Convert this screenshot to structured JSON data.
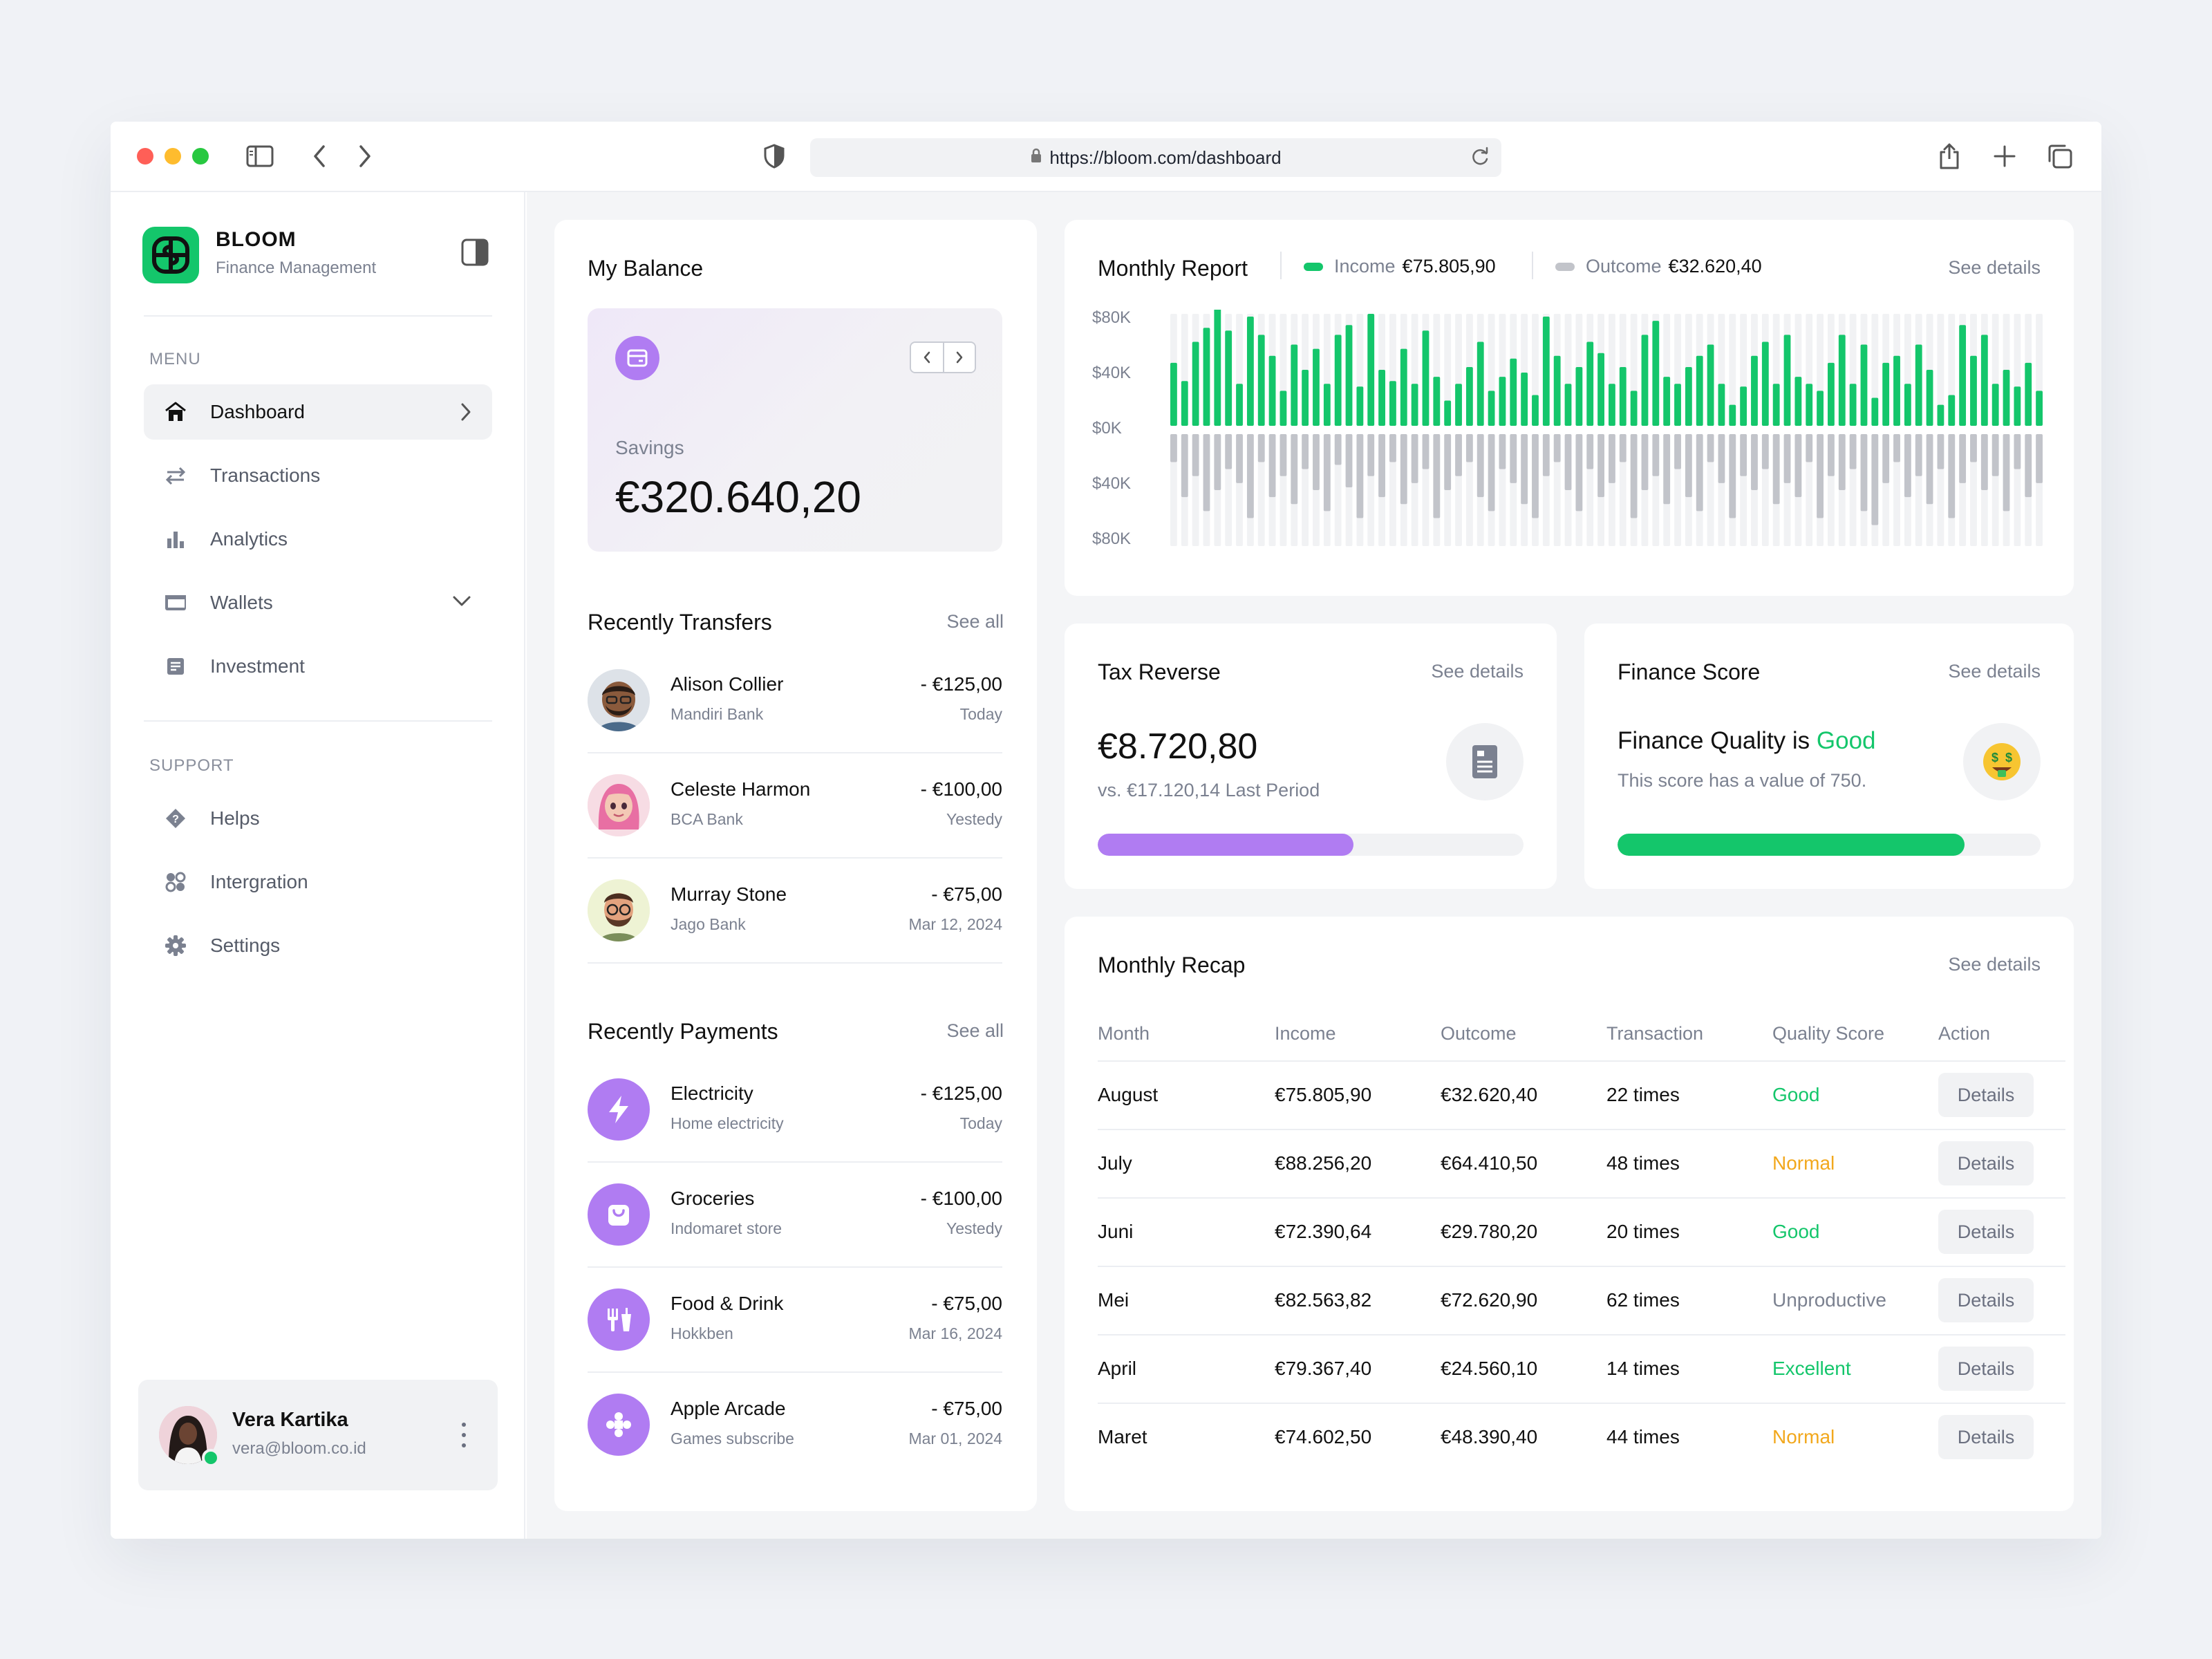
{
  "browser": {
    "url": "https://bloom.com/dashboard"
  },
  "brand": {
    "name": "BLOOM",
    "subtitle": "Finance Management"
  },
  "sidebar": {
    "menu_label": "MENU",
    "menu": [
      {
        "label": "Dashboard",
        "icon": "home-icon"
      },
      {
        "label": "Transactions",
        "icon": "arrows-exchange-icon"
      },
      {
        "label": "Analytics",
        "icon": "bar-chart-icon"
      },
      {
        "label": "Wallets",
        "icon": "wallet-icon"
      },
      {
        "label": "Investment",
        "icon": "document-icon"
      }
    ],
    "support_label": "SUPPORT",
    "support": [
      {
        "label": "Helps",
        "icon": "help-diamond-icon"
      },
      {
        "label": "Intergration",
        "icon": "integration-icon"
      },
      {
        "label": "Settings",
        "icon": "gear-icon"
      }
    ]
  },
  "profile": {
    "name": "Vera Kartika",
    "email": "vera@bloom.co.id"
  },
  "balance": {
    "title": "My Balance",
    "savings_label": "Savings",
    "savings_value": "€320.640,20"
  },
  "transfers": {
    "title": "Recently Transfers",
    "see_all": "See all",
    "items": [
      {
        "name": "Alison Collier",
        "sub": "Mandiri Bank",
        "amount": "- €125,00",
        "date": "Today"
      },
      {
        "name": "Celeste Harmon",
        "sub": "BCA Bank",
        "amount": "- €100,00",
        "date": "Yestedy"
      },
      {
        "name": "Murray Stone",
        "sub": "Jago Bank",
        "amount": "- €75,00",
        "date": "Mar 12, 2024"
      }
    ]
  },
  "payments": {
    "title": "Recently Payments",
    "see_all": "See all",
    "items": [
      {
        "name": "Electricity",
        "sub": "Home electricity",
        "amount": "- €125,00",
        "date": "Today",
        "icon": "lightning-icon"
      },
      {
        "name": "Groceries",
        "sub": "Indomaret store",
        "amount": "- €100,00",
        "date": "Yestedy",
        "icon": "shopping-bag-icon"
      },
      {
        "name": "Food & Drink",
        "sub": "Hokkben",
        "amount": "- €75,00",
        "date": "Mar 16, 2024",
        "icon": "fork-cup-icon"
      },
      {
        "name": "Apple Arcade",
        "sub": "Games subscribe",
        "amount": "- €75,00",
        "date": "Mar 01, 2024",
        "icon": "gamepad-icon"
      }
    ]
  },
  "report": {
    "title": "Monthly Report",
    "income_label": "Income",
    "income_value": "€75.805,90",
    "outcome_label": "Outcome",
    "outcome_value": "€32.620,40",
    "see_details": "See details"
  },
  "chart_data": {
    "type": "bar",
    "y_tick_labels": [
      "$80K",
      "$40K",
      "$0K",
      "$40K",
      "$80K"
    ],
    "ylim": [
      -80,
      80
    ],
    "grid": false,
    "colors": {
      "income": "#14c66b",
      "outcome": "#c2c4ca",
      "track": "#f1f2f4"
    },
    "series": [
      {
        "name": "Income",
        "values": [
          45,
          32,
          60,
          70,
          85,
          68,
          30,
          78,
          65,
          50,
          25,
          58,
          40,
          55,
          30,
          65,
          72,
          28,
          80,
          40,
          32,
          55,
          30,
          68,
          35,
          18,
          30,
          42,
          60,
          25,
          35,
          48,
          38,
          22,
          78,
          50,
          30,
          42,
          60,
          52,
          30,
          42,
          25,
          65,
          75,
          35,
          30,
          42,
          50,
          58,
          30,
          15,
          28,
          50,
          60,
          30,
          65,
          35,
          30,
          25,
          45,
          65,
          30,
          58,
          20,
          45,
          50,
          30,
          58,
          40,
          15,
          22,
          72,
          50,
          65,
          30,
          40,
          28,
          45,
          25
        ]
      },
      {
        "name": "Outcome",
        "values": [
          -20,
          -45,
          -30,
          -55,
          -40,
          -25,
          -35,
          -60,
          -20,
          -45,
          -30,
          -50,
          -25,
          -40,
          -55,
          -22,
          -38,
          -60,
          -30,
          -45,
          -20,
          -50,
          -35,
          -25,
          -60,
          -40,
          -30,
          -20,
          -45,
          -55,
          -25,
          -35,
          -50,
          -60,
          -30,
          -20,
          -40,
          -55,
          -25,
          -45,
          -35,
          -20,
          -60,
          -40,
          -30,
          -50,
          -25,
          -45,
          -55,
          -20,
          -35,
          -60,
          -30,
          -40,
          -25,
          -50,
          -35,
          -45,
          -20,
          -60,
          -30,
          -40,
          -25,
          -55,
          -65,
          -35,
          -20,
          -45,
          -30,
          -50,
          -25,
          -60,
          -35,
          -20,
          -40,
          -30,
          -55,
          -25,
          -45,
          -35
        ]
      }
    ]
  },
  "tax": {
    "title": "Tax Reverse",
    "see_details": "See details",
    "value": "€8.720,80",
    "compare": "vs. €17.120,14 Last Period",
    "progress": 0.6,
    "color": "#b07cf2"
  },
  "score": {
    "title": "Finance Score",
    "see_details": "See details",
    "quality_prefix": "Finance Quality is",
    "quality_value": "Good",
    "description": "This score has a value of 750.",
    "progress": 0.82,
    "color": "#14c66b"
  },
  "recap": {
    "title": "Monthly Recap",
    "see_details": "See details",
    "columns": [
      "Month",
      "Income",
      "Outcome",
      "Transaction",
      "Quality Score",
      "Action"
    ],
    "rows": [
      {
        "month": "August",
        "income": "€75.805,90",
        "outcome": "€32.620,40",
        "transaction": "22 times",
        "quality": "Good",
        "quality_color": "#14c66b",
        "action": "Details"
      },
      {
        "month": "July",
        "income": "€88.256,20",
        "outcome": "€64.410,50",
        "transaction": "48 times",
        "quality": "Normal",
        "quality_color": "#f2a81d",
        "action": "Details"
      },
      {
        "month": "Juni",
        "income": "€72.390,64",
        "outcome": "€29.780,20",
        "transaction": "20 times",
        "quality": "Good",
        "quality_color": "#14c66b",
        "action": "Details"
      },
      {
        "month": "Mei",
        "income": "€82.563,82",
        "outcome": "€72.620,90",
        "transaction": "62 times",
        "quality": "Unproductive",
        "quality_color": "#7b8190",
        "action": "Details"
      },
      {
        "month": "April",
        "income": "€79.367,40",
        "outcome": "€24.560,10",
        "transaction": "14 times",
        "quality": "Excellent",
        "quality_color": "#14c66b",
        "action": "Details"
      },
      {
        "month": "Maret",
        "income": "€74.602,50",
        "outcome": "€48.390,40",
        "transaction": "44 times",
        "quality": "Normal",
        "quality_color": "#f2a81d",
        "action": "Details"
      }
    ]
  }
}
